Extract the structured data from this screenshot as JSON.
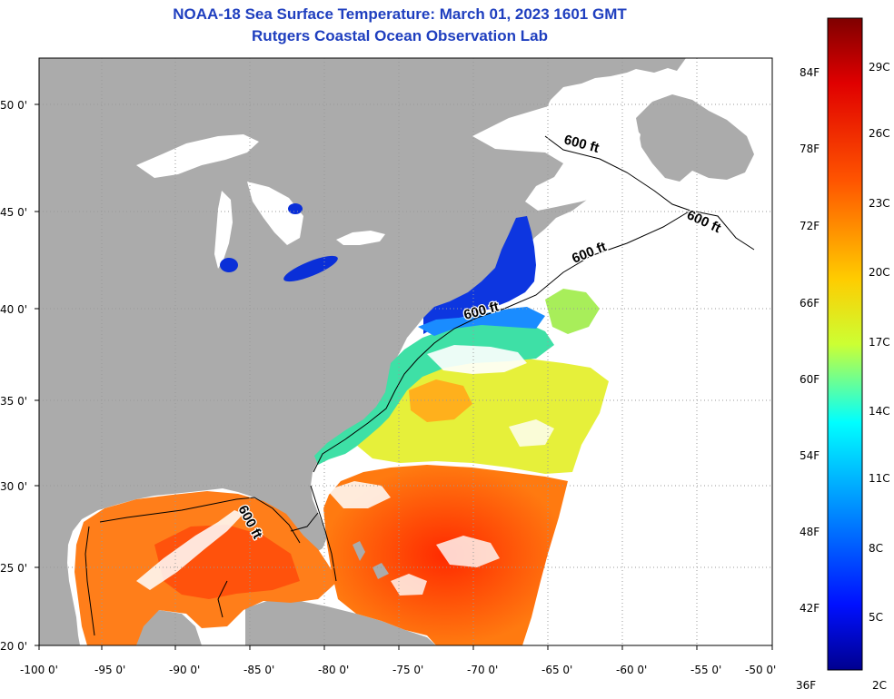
{
  "title": "NOAA-18 Sea Surface Temperature:  March 01, 2023 1601 GMT",
  "subtitle": "Rutgers Coastal Ocean Observation Lab",
  "map": {
    "lon_range": [
      -100,
      -50
    ],
    "lat_range": [
      20,
      52.5
    ],
    "x_ticks": [
      "-100 0'",
      "-95 0'",
      "-90 0'",
      "-85 0'",
      "-80 0'",
      "-75 0'",
      "-70 0'",
      "-65 0'",
      "-60 0'",
      "-55 0'",
      "-50 0'"
    ],
    "y_ticks": [
      "50 0'",
      "45 0'",
      "40 0'",
      "35 0'",
      "30 0'",
      "25 0'",
      "20 0'"
    ],
    "contour_labels": [
      "600 ft",
      "600 ft",
      "600 ft",
      "600 ft",
      "600 ft"
    ],
    "colors": {
      "land": "#ababab",
      "no_data": "#ffffff",
      "grid": "#9a9a9a"
    }
  },
  "colorbar": {
    "fahrenheit_labels": [
      "84F",
      "78F",
      "72F",
      "66F",
      "60F",
      "54F",
      "48F",
      "42F",
      "36F"
    ],
    "celsius_labels": [
      "29C",
      "26C",
      "23C",
      "20C",
      "17C",
      "14C",
      "11C",
      "8C",
      "5C",
      "2C"
    ],
    "gradient": [
      "#7f0000",
      "#ff1a00",
      "#ff8000",
      "#ffdd00",
      "#d8ff2a",
      "#00ffff",
      "#0090ff",
      "#0010ff",
      "#00008f"
    ]
  }
}
